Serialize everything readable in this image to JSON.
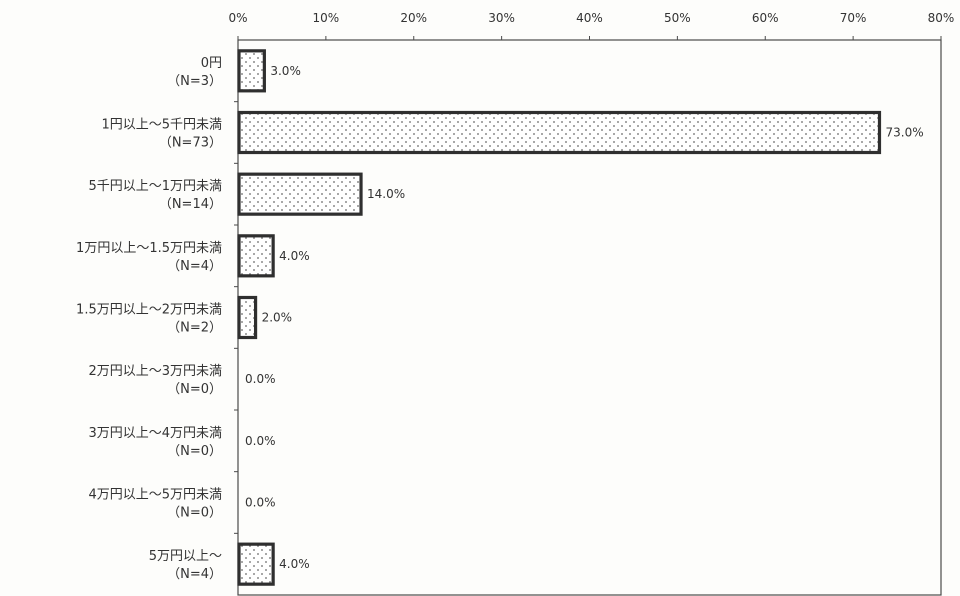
{
  "chart_data": {
    "type": "bar",
    "orientation": "horizontal",
    "title": "",
    "xlabel": "",
    "ylabel": "",
    "xlim": [
      0,
      80
    ],
    "x_ticks": [
      "0%",
      "10%",
      "20%",
      "30%",
      "40%",
      "50%",
      "60%",
      "70%",
      "80%"
    ],
    "categories": [
      {
        "line1": "0円",
        "line2": "（N=3）"
      },
      {
        "line1": "1円以上～5千円未満",
        "line2": "（N=73）"
      },
      {
        "line1": "5千円以上～1万円未満",
        "line2": "（N=14）"
      },
      {
        "line1": "1万円以上～1.5万円未満",
        "line2": "（N=4）"
      },
      {
        "line1": "1.5万円以上～2万円未満",
        "line2": "（N=2）"
      },
      {
        "line1": "2万円以上～3万円未満",
        "line2": "（N=0）"
      },
      {
        "line1": "3万円以上～4万円未満",
        "line2": "（N=0）"
      },
      {
        "line1": "4万円以上～5万円未満",
        "line2": "（N=0）"
      },
      {
        "line1": "5万円以上～",
        "line2": "（N=4）"
      }
    ],
    "values": [
      3.0,
      73.0,
      14.0,
      4.0,
      2.0,
      0.0,
      0.0,
      0.0,
      4.0
    ],
    "value_labels": [
      "3.0%",
      "73.0%",
      "14.0%",
      "4.0%",
      "2.0%",
      "0.0%",
      "0.0%",
      "0.0%",
      "4.0%"
    ],
    "grid": false,
    "legend": "none",
    "colors": {
      "bar_stroke": "#2f2f2f",
      "bar_fill": "#ffffff",
      "dot": "#6a6a6a",
      "axis": "#4a4a4a"
    }
  }
}
